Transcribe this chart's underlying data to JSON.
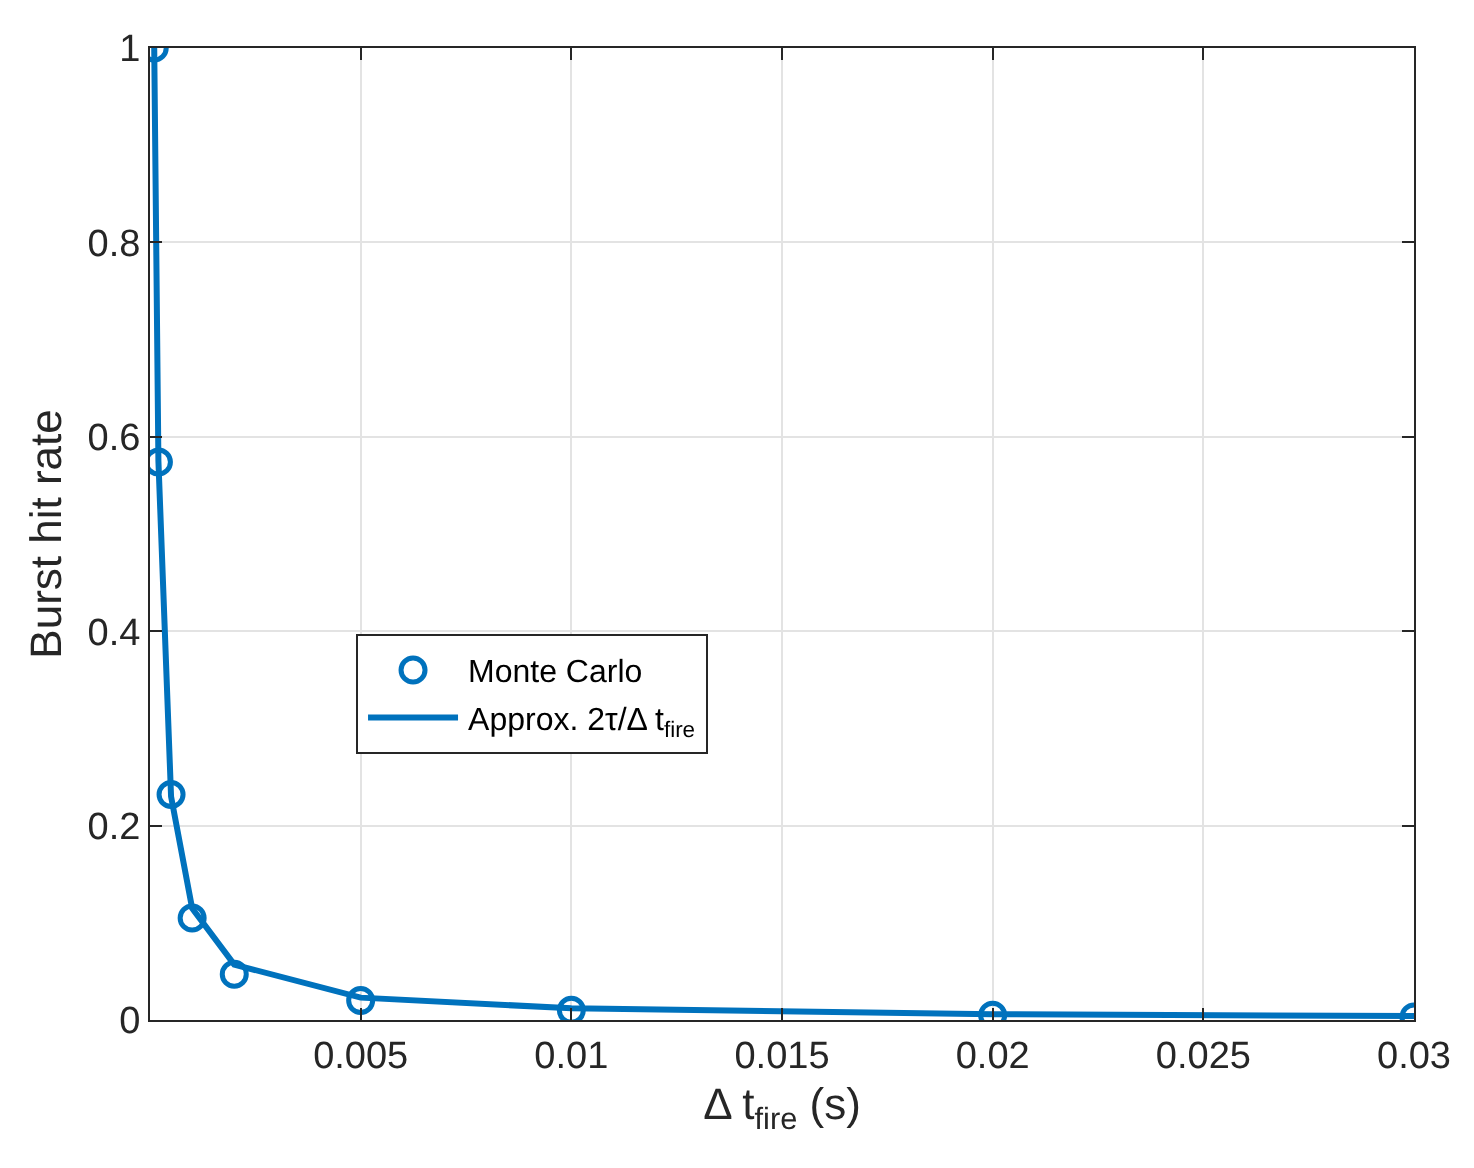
{
  "chart_data": {
    "type": "line",
    "xlabel": "Δ t$_{fire}$ (s)",
    "ylabel": "Burst hit rate",
    "x": [
      0.0001,
      0.0002,
      0.0005,
      0.001,
      0.002,
      0.005,
      0.01,
      0.02,
      0.03
    ],
    "series": [
      {
        "name": "Monte Carlo",
        "type": "scatter",
        "marker": "circle",
        "color": "#0072bd",
        "values": [
          1,
          0.574,
          0.232,
          0.105,
          0.047,
          0.02,
          0.01,
          0.005,
          0.003
        ]
      },
      {
        "name": "Approx. 2τ/Δ t$_{fire}$",
        "color": "#0072bd",
        "values": [
          1,
          0.575,
          0.23,
          0.115,
          0.057,
          0.023,
          0.012,
          0.006,
          0.004
        ]
      }
    ],
    "xlim": [
      0,
      0.03
    ],
    "xticks": [
      0.005,
      0.01,
      0.015,
      0.02,
      0.025,
      0.03
    ],
    "ylim": [
      0,
      1
    ],
    "yticks": [
      0,
      0.2,
      0.4,
      0.6,
      0.8,
      1
    ],
    "grid": true,
    "legend": "left",
    "line_style": "solid"
  }
}
